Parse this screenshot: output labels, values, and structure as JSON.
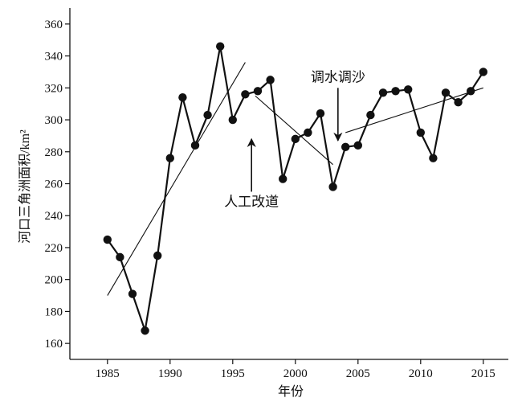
{
  "chart_data": {
    "type": "line",
    "title": "",
    "xlabel": "年份",
    "ylabel": "河口三角洲面积/km²",
    "xlim": [
      1982,
      2017
    ],
    "ylim": [
      150,
      370
    ],
    "xticks": [
      1985,
      1990,
      1995,
      2000,
      2005,
      2010,
      2015
    ],
    "yticks": [
      160,
      180,
      200,
      220,
      240,
      260,
      280,
      300,
      320,
      340,
      360
    ],
    "grid": false,
    "legend": "none",
    "series": [
      {
        "x": [
          1985,
          1986,
          1987,
          1988,
          1989,
          1990,
          1991,
          1992,
          1993,
          1994,
          1995,
          1996,
          1997,
          1998,
          1999,
          2000,
          2001,
          2002,
          2003,
          2004,
          2005,
          2006,
          2007,
          2008,
          2009,
          2010,
          2011,
          2012,
          2013,
          2014,
          2015
        ],
        "values": [
          225,
          214,
          191,
          168,
          215,
          276,
          314,
          284,
          303,
          346,
          300,
          316,
          318,
          325,
          263,
          288,
          292,
          304,
          258,
          283,
          284,
          303,
          317,
          318,
          319,
          292,
          276,
          317,
          311,
          318,
          330
        ]
      }
    ],
    "trendlines": [
      {
        "x": [
          1985,
          1996
        ],
        "values": [
          190,
          336
        ]
      },
      {
        "x": [
          1996.8,
          2003
        ],
        "values": [
          315,
          272
        ]
      },
      {
        "x": [
          2004,
          2015
        ],
        "values": [
          292,
          320
        ]
      }
    ],
    "annotations": [
      {
        "text": "人工改道",
        "arrow_x": 1996.5,
        "arrow_from": 255,
        "arrow_to": 288
      },
      {
        "text": "调水调沙",
        "arrow_x": 2003.4,
        "arrow_from": 320,
        "arrow_to": 287
      }
    ]
  }
}
